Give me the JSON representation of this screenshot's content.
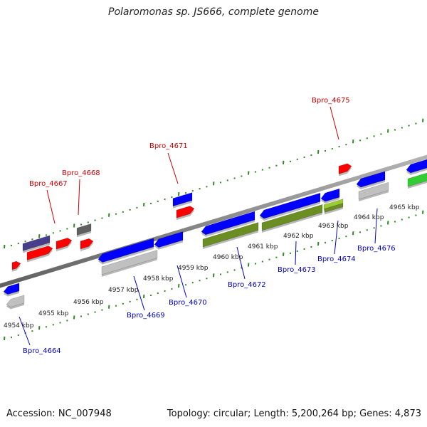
{
  "title": "Polaromonas sp. JS666, complete genome",
  "footer": {
    "accession": "Accession: NC_007948",
    "summary": "Topology: circular; Length: 5,200,264 bp; Genes: 4,873"
  },
  "colors": {
    "backbone": "#909090",
    "tick": "#2e8b22",
    "label_top": "#cc0000",
    "label_bottom": "#0000cc",
    "gene_red": "#ff0000",
    "gene_blue": "#0000ff",
    "gene_gray": "#c0c0c0",
    "gene_olive": "#6b8e23",
    "gene_navy": "#483d8b",
    "gene_dark": "#606060",
    "gene_green": "#32cd32",
    "gene_yellowgreen": "#9acd32"
  },
  "kbp_labels": [
    "4954 kbp",
    "4955 kbp",
    "4956 kbp",
    "4957 kbp",
    "4958 kbp",
    "4959 kbp",
    "4960 kbp",
    "4961 kbp",
    "4962 kbp",
    "4963 kbp",
    "4964 kbp",
    "4965 kbp"
  ],
  "gene_labels_top": [
    "Bpro_4667",
    "Bpro_4668",
    "Bpro_4671",
    "Bpro_4675"
  ],
  "gene_labels_bottom": [
    "Bpro_4664",
    "Bpro_4669",
    "Bpro_4670",
    "Bpro_4672",
    "Bpro_4673",
    "Bpro_4674",
    "Bpro_4676"
  ]
}
